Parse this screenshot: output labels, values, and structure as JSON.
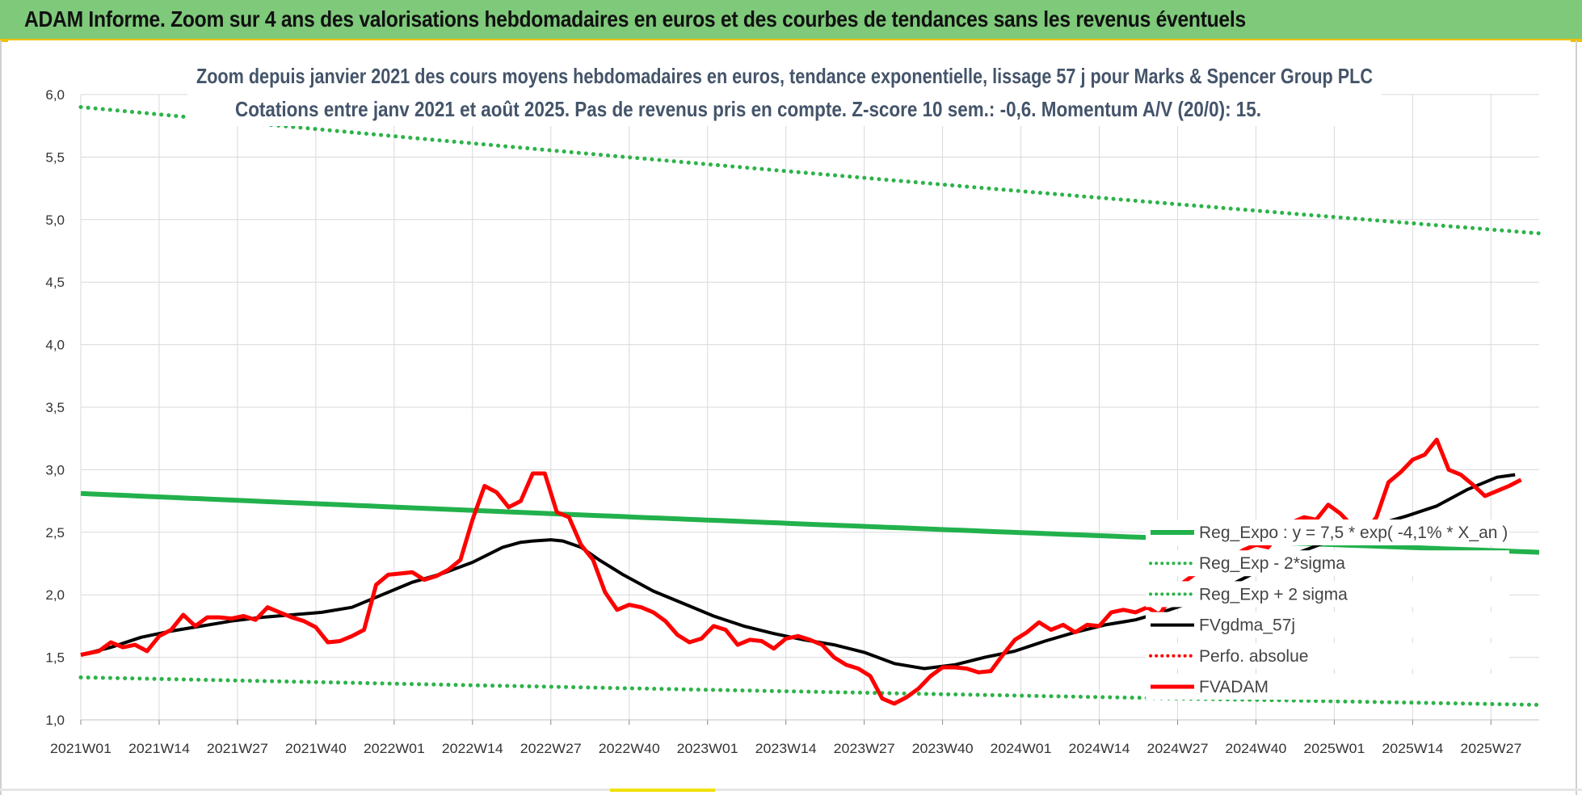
{
  "header": {
    "title": "ADAM Informe. Zoom sur 4 ans des valorisations hebdomadaires en euros et des courbes de tendances sans les revenus éventuels"
  },
  "colors": {
    "header_bg": "#7ec97a",
    "reg_green": "#22b14c",
    "sigma_green": "#2db34a",
    "gdma_black": "#000000",
    "fvadam_red": "#ff0000",
    "perfo_red": "#ff0000",
    "grid": "#d9d9d9"
  },
  "chart_data": {
    "type": "line",
    "title_lines": [
      "Zoom depuis janvier 2021 des cours moyens hebdomadaires en euros, tendance exponentielle, lissage 57 j pour Marks & Spencer Group PLC",
      "Cotations entre janv 2021 et août 2025.  Pas de revenus pris en compte. Z-score 10 sem.: -0,6. Momentum A/V (20/0): 15."
    ],
    "xlabel": "",
    "ylabel": "",
    "ylim": [
      1.0,
      6.0
    ],
    "yticks": [
      "1,0",
      "1,5",
      "2,0",
      "2,5",
      "3,0",
      "3,5",
      "4,0",
      "4,5",
      "5,0",
      "5,5",
      "6,0"
    ],
    "x_tick_labels": [
      "2021W01",
      "2021W14",
      "2021W27",
      "2021W40",
      "2022W01",
      "2022W14",
      "2022W27",
      "2022W40",
      "2023W01",
      "2023W14",
      "2023W27",
      "2023W40",
      "2024W01",
      "2024W14",
      "2024W27",
      "2024W40",
      "2025W01",
      "2025W14",
      "2025W27"
    ],
    "n_weeks": 243,
    "grid": true,
    "legend_position": "bottom-right",
    "series": [
      {
        "name": "Reg_Expo : y = 7,5 * exp( -4,1% * X_an )",
        "style": "solid-thick",
        "color": "#22b14c",
        "start": 2.81,
        "end": 2.34
      },
      {
        "name": "Reg_Exp - 2*sigma",
        "style": "dotted",
        "color": "#2db34a",
        "start": 1.34,
        "end": 1.12
      },
      {
        "name": "Reg_Exp + 2 sigma",
        "style": "dotted",
        "color": "#2db34a",
        "start": 5.9,
        "end": 4.89
      },
      {
        "name": "FVgdma_57j",
        "style": "solid",
        "color": "#000000",
        "points": [
          [
            0,
            1.52
          ],
          [
            5,
            1.58
          ],
          [
            10,
            1.66
          ],
          [
            15,
            1.71
          ],
          [
            20,
            1.75
          ],
          [
            25,
            1.79
          ],
          [
            30,
            1.82
          ],
          [
            35,
            1.84
          ],
          [
            40,
            1.86
          ],
          [
            45,
            1.9
          ],
          [
            50,
            2.0
          ],
          [
            55,
            2.1
          ],
          [
            60,
            2.17
          ],
          [
            65,
            2.26
          ],
          [
            70,
            2.38
          ],
          [
            73,
            2.42
          ],
          [
            75,
            2.43
          ],
          [
            78,
            2.44
          ],
          [
            80,
            2.43
          ],
          [
            83,
            2.38
          ],
          [
            86,
            2.28
          ],
          [
            90,
            2.16
          ],
          [
            95,
            2.03
          ],
          [
            100,
            1.93
          ],
          [
            105,
            1.83
          ],
          [
            110,
            1.75
          ],
          [
            115,
            1.69
          ],
          [
            120,
            1.64
          ],
          [
            125,
            1.6
          ],
          [
            130,
            1.54
          ],
          [
            135,
            1.45
          ],
          [
            140,
            1.41
          ],
          [
            145,
            1.44
          ],
          [
            150,
            1.5
          ],
          [
            155,
            1.55
          ],
          [
            160,
            1.63
          ],
          [
            165,
            1.7
          ],
          [
            170,
            1.76
          ],
          [
            175,
            1.8
          ],
          [
            180,
            1.87
          ],
          [
            185,
            1.95
          ],
          [
            190,
            2.06
          ],
          [
            195,
            2.18
          ],
          [
            200,
            2.3
          ],
          [
            205,
            2.39
          ],
          [
            210,
            2.48
          ],
          [
            215,
            2.56
          ],
          [
            220,
            2.63
          ],
          [
            225,
            2.71
          ],
          [
            230,
            2.84
          ],
          [
            235,
            2.94
          ],
          [
            238,
            2.96
          ]
        ]
      },
      {
        "name": "Perfo. absolue",
        "style": "dotted",
        "color": "#ff0000",
        "points": []
      },
      {
        "name": "FVADAM",
        "style": "solid-thick",
        "color": "#ff0000",
        "points": [
          [
            0,
            1.52
          ],
          [
            3,
            1.55
          ],
          [
            5,
            1.62
          ],
          [
            7,
            1.58
          ],
          [
            9,
            1.6
          ],
          [
            11,
            1.55
          ],
          [
            13,
            1.67
          ],
          [
            15,
            1.72
          ],
          [
            17,
            1.84
          ],
          [
            19,
            1.75
          ],
          [
            21,
            1.82
          ],
          [
            23,
            1.82
          ],
          [
            25,
            1.81
          ],
          [
            27,
            1.83
          ],
          [
            29,
            1.8
          ],
          [
            31,
            1.9
          ],
          [
            33,
            1.86
          ],
          [
            35,
            1.82
          ],
          [
            37,
            1.79
          ],
          [
            39,
            1.74
          ],
          [
            41,
            1.62
          ],
          [
            43,
            1.63
          ],
          [
            45,
            1.67
          ],
          [
            47,
            1.72
          ],
          [
            49,
            2.08
          ],
          [
            51,
            2.16
          ],
          [
            53,
            2.17
          ],
          [
            55,
            2.18
          ],
          [
            57,
            2.12
          ],
          [
            59,
            2.15
          ],
          [
            61,
            2.2
          ],
          [
            63,
            2.28
          ],
          [
            65,
            2.6
          ],
          [
            67,
            2.87
          ],
          [
            69,
            2.82
          ],
          [
            71,
            2.7
          ],
          [
            73,
            2.75
          ],
          [
            75,
            2.97
          ],
          [
            77,
            2.97
          ],
          [
            79,
            2.66
          ],
          [
            81,
            2.62
          ],
          [
            83,
            2.4
          ],
          [
            85,
            2.28
          ],
          [
            87,
            2.02
          ],
          [
            89,
            1.88
          ],
          [
            91,
            1.92
          ],
          [
            93,
            1.9
          ],
          [
            95,
            1.86
          ],
          [
            97,
            1.79
          ],
          [
            99,
            1.68
          ],
          [
            101,
            1.62
          ],
          [
            103,
            1.65
          ],
          [
            105,
            1.75
          ],
          [
            107,
            1.72
          ],
          [
            109,
            1.6
          ],
          [
            111,
            1.64
          ],
          [
            113,
            1.63
          ],
          [
            115,
            1.57
          ],
          [
            117,
            1.65
          ],
          [
            119,
            1.67
          ],
          [
            121,
            1.64
          ],
          [
            123,
            1.6
          ],
          [
            125,
            1.5
          ],
          [
            127,
            1.44
          ],
          [
            129,
            1.41
          ],
          [
            131,
            1.35
          ],
          [
            133,
            1.17
          ],
          [
            135,
            1.13
          ],
          [
            137,
            1.18
          ],
          [
            139,
            1.25
          ],
          [
            141,
            1.35
          ],
          [
            143,
            1.42
          ],
          [
            145,
            1.42
          ],
          [
            147,
            1.41
          ],
          [
            149,
            1.38
          ],
          [
            151,
            1.39
          ],
          [
            153,
            1.52
          ],
          [
            155,
            1.64
          ],
          [
            157,
            1.7
          ],
          [
            159,
            1.78
          ],
          [
            161,
            1.72
          ],
          [
            163,
            1.76
          ],
          [
            165,
            1.7
          ],
          [
            167,
            1.76
          ],
          [
            169,
            1.75
          ],
          [
            171,
            1.86
          ],
          [
            173,
            1.88
          ],
          [
            175,
            1.86
          ],
          [
            177,
            1.9
          ],
          [
            179,
            1.84
          ],
          [
            181,
            1.99
          ],
          [
            183,
            2.1
          ],
          [
            185,
            2.17
          ],
          [
            187,
            2.22
          ],
          [
            189,
            2.25
          ],
          [
            191,
            2.3
          ],
          [
            193,
            2.36
          ],
          [
            195,
            2.4
          ],
          [
            197,
            2.38
          ],
          [
            199,
            2.5
          ],
          [
            201,
            2.58
          ],
          [
            203,
            2.62
          ],
          [
            205,
            2.6
          ],
          [
            207,
            2.72
          ],
          [
            209,
            2.65
          ],
          [
            211,
            2.55
          ],
          [
            213,
            2.5
          ],
          [
            215,
            2.62
          ],
          [
            217,
            2.9
          ],
          [
            219,
            2.98
          ],
          [
            221,
            3.08
          ],
          [
            223,
            3.12
          ],
          [
            225,
            3.24
          ],
          [
            227,
            3.0
          ],
          [
            229,
            2.96
          ],
          [
            231,
            2.88
          ],
          [
            233,
            2.79
          ],
          [
            235,
            2.83
          ],
          [
            237,
            2.87
          ],
          [
            239,
            2.92
          ]
        ]
      }
    ]
  }
}
